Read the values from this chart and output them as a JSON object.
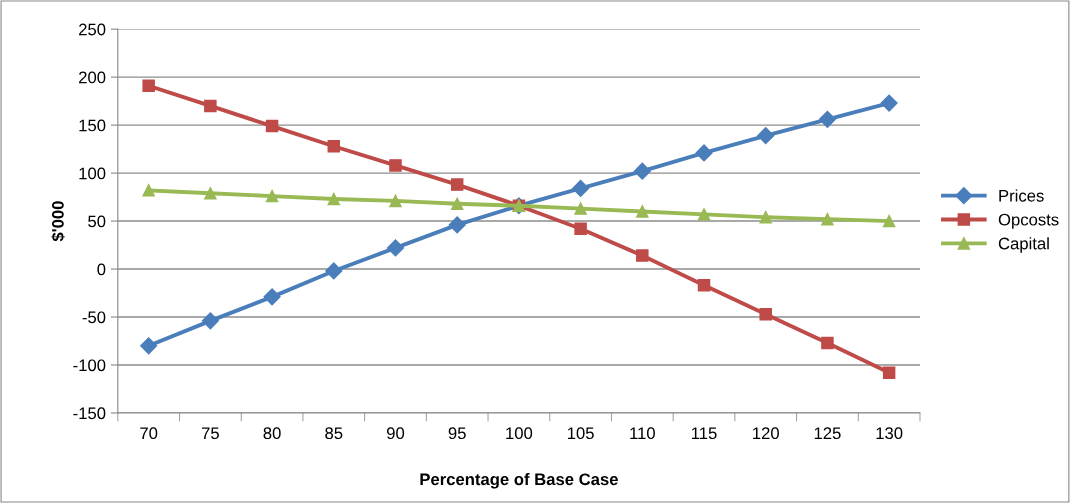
{
  "chart_data": {
    "type": "line",
    "xlabel": "Percentage of Base Case",
    "ylabel": "$'000",
    "categories": [
      "70",
      "75",
      "80",
      "85",
      "90",
      "95",
      "100",
      "105",
      "110",
      "115",
      "120",
      "125",
      "130"
    ],
    "series": [
      {
        "name": "Prices",
        "color": "#4a7ebb",
        "marker": "diamond",
        "values": [
          -80,
          -54,
          -29,
          -2,
          22,
          46,
          66,
          84,
          102,
          121,
          139,
          156,
          173
        ]
      },
      {
        "name": "Opcosts",
        "color": "#be4b48",
        "marker": "square",
        "values": [
          191,
          170,
          149,
          128,
          108,
          88,
          66,
          42,
          14,
          -17,
          -47,
          -77,
          -108
        ]
      },
      {
        "name": "Capital",
        "color": "#98b954",
        "marker": "triangle",
        "values": [
          82,
          79,
          76,
          73,
          71,
          68,
          66,
          63,
          60,
          57,
          54,
          52,
          50
        ]
      }
    ],
    "ylim": [
      -150,
      250
    ],
    "yticks": [
      -150,
      -100,
      -50,
      0,
      50,
      100,
      150,
      200,
      250
    ],
    "grid": "y",
    "legend": "right",
    "line_style": "solid"
  }
}
